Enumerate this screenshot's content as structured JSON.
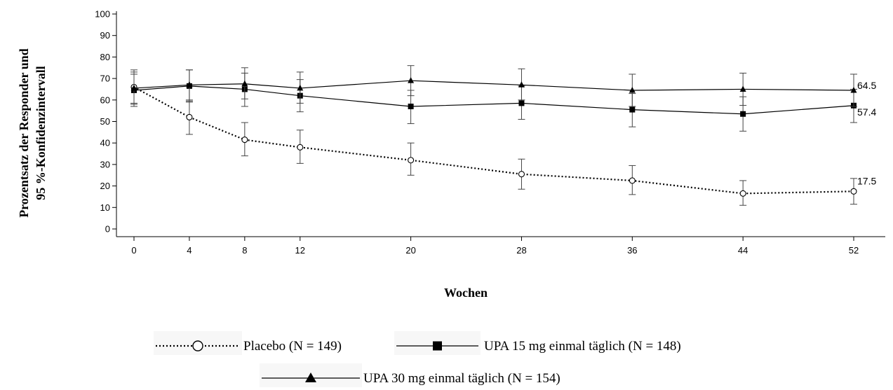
{
  "chart_data": {
    "type": "line",
    "title": "",
    "xlabel": "Wochen",
    "ylabel_line1": "Prozentsatz der Responder und",
    "ylabel_line2": "95 %-Konfidenzintervall",
    "x": [
      0,
      4,
      8,
      12,
      20,
      28,
      36,
      44,
      52
    ],
    "xticks": [
      0,
      4,
      8,
      12,
      20,
      28,
      36,
      44,
      52
    ],
    "yticks": [
      0,
      10,
      20,
      30,
      40,
      50,
      60,
      70,
      80,
      90,
      100
    ],
    "ylim": [
      0,
      100
    ],
    "xlim": [
      0,
      52
    ],
    "legend_placement": "bottom",
    "series": [
      {
        "name": "Placebo (N = 149)",
        "marker": "open-circle",
        "line": "dotted",
        "color": "#000000",
        "values": [
          66,
          52,
          41.5,
          38,
          32,
          25.5,
          22.5,
          16.5,
          17.5
        ],
        "lower": [
          58,
          44,
          34,
          30.5,
          25,
          18.5,
          16,
          11,
          11.5
        ],
        "upper": [
          73,
          59.5,
          49.5,
          46,
          40,
          32.5,
          29.5,
          22.5,
          23.5
        ],
        "end_label": "17.5"
      },
      {
        "name": "UPA 15 mg einmal täglich (N = 148)",
        "marker": "filled-square",
        "line": "solid",
        "color": "#000000",
        "values": [
          64.5,
          66.5,
          65,
          62,
          57,
          58.5,
          55.5,
          53.5,
          57.4
        ],
        "lower": [
          57,
          59,
          57,
          54.5,
          49,
          51,
          47.5,
          45.5,
          49.5
        ],
        "upper": [
          72,
          74,
          72.5,
          69.5,
          64.5,
          66.5,
          63,
          61.5,
          65
        ]
      },
      {
        "name": "UPA 30 mg einmal täglich (N = 154)",
        "marker": "filled-triangle",
        "line": "solid",
        "color": "#000000",
        "values": [
          65.5,
          67,
          67.5,
          65.5,
          69,
          67,
          64.5,
          65,
          64.5
        ],
        "lower": [
          58.5,
          60,
          60.5,
          58.5,
          62,
          60,
          57,
          57.5,
          57
        ],
        "upper": [
          74,
          74,
          75,
          73,
          76,
          74.5,
          72,
          72.5,
          72
        ]
      }
    ],
    "end_labels": [
      "64.5",
      "57.4",
      "17.5"
    ]
  }
}
